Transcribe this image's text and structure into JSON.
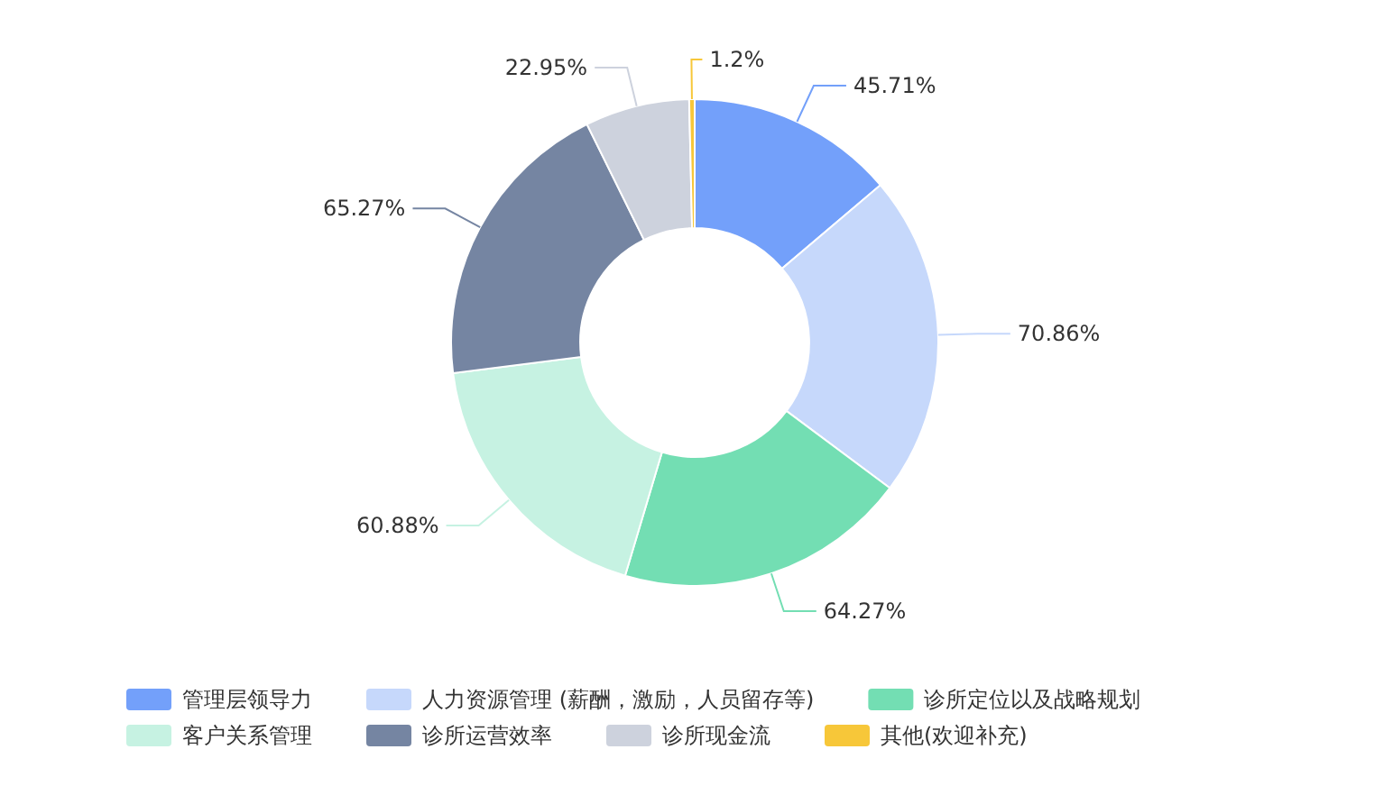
{
  "chart_data": {
    "type": "donut",
    "categories": [
      "管理层领导力",
      "人力资源管理 (薪酬，激励，人员留存等)",
      "诊所定位以及战略规划",
      "客户关系管理",
      "诊所运营效率",
      "诊所现金流",
      "其他(欢迎补充)"
    ],
    "values": [
      45.71,
      70.86,
      64.27,
      60.88,
      65.27,
      22.95,
      1.2
    ],
    "value_labels": [
      "45.71%",
      "70.86%",
      "64.27%",
      "60.88%",
      "65.27%",
      "22.95%",
      "1.2%"
    ],
    "colors": [
      "#73a0fa",
      "#c6d8fb",
      "#73deb3",
      "#c6f2e2",
      "#7585a2",
      "#cdd2dd",
      "#f7c739"
    ],
    "legend": "bottom"
  }
}
